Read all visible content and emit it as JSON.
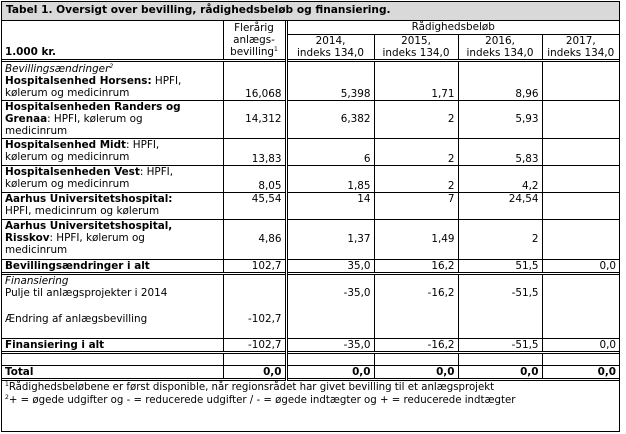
{
  "title": "Tabel 1. Oversigt over bevilling, rådighedsbeløb og finansiering.",
  "header": {
    "unit": "1.000 kr.",
    "flerarig": "Flerårig anlægs-bevilling",
    "flerarig_l1": "Flerårig",
    "flerarig_l2": "anlægs-",
    "flerarig_l3": "bevilling",
    "flerarig_sup": "1",
    "radigheds": "Rådighedsbeløb",
    "years": [
      {
        "l1": "2014,",
        "l2": "indeks 134,0"
      },
      {
        "l1": "2015,",
        "l2": "indeks 134,0"
      },
      {
        "l1": "2016,",
        "l2": "indeks 134,0"
      },
      {
        "l1": "2017,",
        "l2": "indeks 134,0"
      }
    ]
  },
  "section_bevilling": {
    "label": "Bevillingsændringer",
    "sup": "2"
  },
  "rows": [
    {
      "name": "Hospitalsenhed Horsens:",
      "rest": " HPFI,",
      "line2": "kølerum og medicinrum",
      "line3": "",
      "flerarig": "16,068",
      "y2014": "5,398",
      "y2015": "1,71",
      "y2016": "8,96",
      "y2017": ""
    },
    {
      "name": "Hospitalsenheden Randers og",
      "name2": "Grenaa",
      "rest": ": HPFI, kølerum og",
      "line3": "medicinrum",
      "flerarig": "14,312",
      "y2014": "6,382",
      "y2015": "2",
      "y2016": "5,93",
      "y2017": ""
    },
    {
      "name": "Hospitalsenhed Midt",
      "rest": ": HPFI,",
      "line2": "kølerum og medicinrum",
      "flerarig": "13,83",
      "y2014": "6",
      "y2015": "2",
      "y2016": "5,83",
      "y2017": ""
    },
    {
      "name": "Hospitalsenheden Vest",
      "rest": ": HPFI,",
      "line2": "kølerum og medicinrum",
      "flerarig": "8,05",
      "y2014": "1,85",
      "y2015": "2",
      "y2016": "4,2",
      "y2017": ""
    },
    {
      "name": "Aarhus Universitetshospital:",
      "line2": "HPFI, medicinrum og kølerum",
      "flerarig": "45,54",
      "y2014": "14",
      "y2015": "7",
      "y2016": "24,54",
      "y2017": ""
    },
    {
      "name": "Aarhus Universitetshospital,",
      "name2": "Risskov",
      "rest": ": HPFI, kølerum og",
      "line3": "medicinrum",
      "flerarig": "4,86",
      "y2014": "1,37",
      "y2015": "1,49",
      "y2016": "2",
      "y2017": ""
    }
  ],
  "total_bevilling": {
    "label": "Bevillingsændringer i alt",
    "flerarig": "102,7",
    "y2014": "35,0",
    "y2015": "16,2",
    "y2016": "51,5",
    "y2017": "0,0"
  },
  "section_finansiering": {
    "label": "Finansiering"
  },
  "fin_rows": [
    {
      "label": "Pulje til anlægsprojekter i 2014",
      "flerarig": "",
      "y2014": "-35,0",
      "y2015": "-16,2",
      "y2016": "-51,5",
      "y2017": ""
    },
    {
      "label": "Ændring af anlægsbevilling",
      "flerarig": "-102,7",
      "y2014": "",
      "y2015": "",
      "y2016": "",
      "y2017": ""
    }
  ],
  "total_fin": {
    "label": "Finansiering i alt",
    "flerarig": "-102,7",
    "y2014": "-35,0",
    "y2015": "-16,2",
    "y2016": "-51,5",
    "y2017": "0,0"
  },
  "total": {
    "label": "Total",
    "flerarig": "0,0",
    "y2014": "0,0",
    "y2015": "0,0",
    "y2016": "0,0",
    "y2017": "0,0"
  },
  "notes": [
    {
      "sup": "1",
      "text": "Rådighedsbeløbene er først disponible, når regionsrådet har givet bevilling til et anlægsprojekt"
    },
    {
      "sup": "2",
      "text": "+ = øgede udgifter og - = reducerede udgifter / - = øgede indtægter og + = reducerede indtægter"
    }
  ]
}
